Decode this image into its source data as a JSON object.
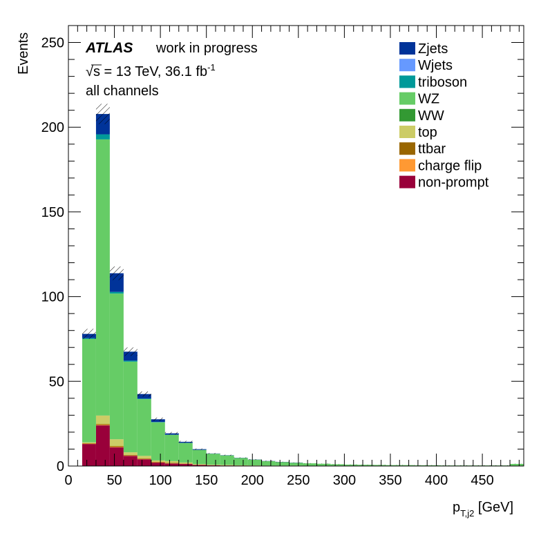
{
  "chart_data": {
    "type": "bar",
    "stacked": true,
    "histogram": true,
    "title": "",
    "xlabel_main": "p",
    "xlabel_sub": "T,j2",
    "xlabel_unit": " [GeV]",
    "ylabel": "Events",
    "xlim": [
      0,
      495
    ],
    "ylim": [
      0,
      260
    ],
    "x_ticks": [
      "0",
      "50",
      "100",
      "150",
      "200",
      "250",
      "300",
      "350",
      "400",
      "450"
    ],
    "y_ticks": [
      "0",
      "50",
      "100",
      "150",
      "200",
      "250"
    ],
    "grid": false,
    "legend_position": "top-right",
    "annotations": {
      "atlas_label": "ATLAS",
      "atlas_status": "work in progress",
      "energy_sqrt": "√s",
      "energy_text": " = 13 TeV, 36.1 fb",
      "energy_sup": "-1",
      "channel": "all channels"
    },
    "bin_edges": [
      15,
      30,
      45,
      60,
      75,
      90,
      105,
      120,
      135,
      150,
      165,
      180,
      195,
      210,
      225,
      240,
      255,
      270,
      285,
      300,
      315,
      330,
      345,
      360,
      375,
      390,
      405,
      420,
      435,
      450,
      465,
      480,
      495
    ],
    "series": [
      {
        "name": "non-prompt",
        "color": "#99003a",
        "values": [
          13,
          24,
          11,
          6,
          4,
          2,
          1.5,
          1.2,
          0.6,
          0.4,
          0.3,
          0.2,
          0.15,
          0.1,
          0.1,
          0.1,
          0.05,
          0.05,
          0.05,
          0.05,
          0.05,
          0.05,
          0.05,
          0.05,
          0.05,
          0.05,
          0.05,
          0.05,
          0.05,
          0.05,
          0.05,
          0.05
        ]
      },
      {
        "name": "charge flip",
        "color": "#ff9933",
        "values": [
          0.2,
          0.3,
          0.3,
          0.2,
          0.2,
          0.2,
          0.1,
          0.1,
          0.1,
          0.05,
          0.05,
          0.05,
          0.05,
          0.05,
          0.05,
          0.05,
          0,
          0,
          0,
          0,
          0,
          0,
          0,
          0,
          0,
          0,
          0,
          0,
          0,
          0,
          0,
          0
        ]
      },
      {
        "name": "ttbar",
        "color": "#996600",
        "values": [
          0.3,
          0.5,
          0.5,
          0.4,
          0.3,
          0.3,
          0.3,
          0.2,
          0.1,
          0.1,
          0.1,
          0.1,
          0.05,
          0.05,
          0.05,
          0.05,
          0,
          0,
          0,
          0,
          0,
          0,
          0,
          0,
          0,
          0,
          0,
          0,
          0,
          0,
          0,
          0
        ]
      },
      {
        "name": "top",
        "color": "#cccc66",
        "values": [
          0.5,
          5,
          4,
          1.5,
          1.5,
          0.8,
          1,
          0.6,
          0.3,
          0.2,
          0.2,
          0.1,
          0.1,
          0.05,
          0.05,
          0.05,
          0.05,
          0,
          0,
          0,
          0,
          0,
          0,
          0,
          0,
          0,
          0,
          0,
          0,
          0,
          0,
          0
        ]
      },
      {
        "name": "WW",
        "color": "#339933",
        "values": [
          0,
          0,
          0,
          0,
          0,
          0,
          0,
          0,
          0,
          0,
          0,
          0,
          0,
          0,
          0,
          0,
          0,
          0,
          0,
          0,
          0,
          0,
          0,
          0,
          0,
          0,
          0,
          0,
          0,
          0,
          0,
          0
        ]
      },
      {
        "name": "WZ",
        "color": "#66cc66",
        "values": [
          61,
          163,
          86,
          53.5,
          33.5,
          22.5,
          15.5,
          11.5,
          8.4,
          6.5,
          5.6,
          4.3,
          3.4,
          2.6,
          2.1,
          1.7,
          1.5,
          1.3,
          1.0,
          0.8,
          0.7,
          0.6,
          0.5,
          0.5,
          0.4,
          0.4,
          0.3,
          0.3,
          0.3,
          0.3,
          0.3,
          1.2
        ]
      },
      {
        "name": "triboson",
        "color": "#009999",
        "values": [
          0.5,
          3,
          1,
          0.6,
          0.3,
          0.2,
          0.1,
          0.1,
          0.05,
          0.05,
          0.05,
          0.05,
          0,
          0,
          0,
          0,
          0,
          0,
          0,
          0,
          0,
          0,
          0,
          0,
          0,
          0,
          0,
          0,
          0,
          0,
          0,
          0
        ]
      },
      {
        "name": "Wjets",
        "color": "#6699ff",
        "values": [
          0,
          0,
          0,
          0,
          0,
          0,
          0,
          0,
          0,
          0,
          0,
          0,
          0,
          0,
          0,
          0,
          0,
          0,
          0,
          0,
          0,
          0,
          0,
          0,
          0,
          0,
          0,
          0,
          0,
          0,
          0,
          0
        ]
      },
      {
        "name": "Zjets",
        "color": "#003399",
        "values": [
          2.5,
          12,
          11,
          5.3,
          2.7,
          1.6,
          0.8,
          0.6,
          0.4,
          0.1,
          0.1,
          0.1,
          0.1,
          0.1,
          0.1,
          0.1,
          0,
          0,
          0,
          0,
          0,
          0,
          0,
          0,
          0,
          0,
          0,
          0,
          0,
          0,
          0,
          0
        ]
      }
    ],
    "uncertainty": [
      3,
      6,
      4,
      2.5,
      1.5,
      1,
      0.8,
      0.6,
      0.4,
      0.3,
      0.3,
      0.2,
      0.2,
      0.2,
      0.1,
      0.1,
      0.1,
      0.1,
      0.1,
      0.1,
      0.1,
      0.1,
      0.1,
      0.1,
      0.1,
      0.1,
      0.1,
      0.1,
      0.1,
      0.1,
      0.1,
      0.1
    ]
  }
}
